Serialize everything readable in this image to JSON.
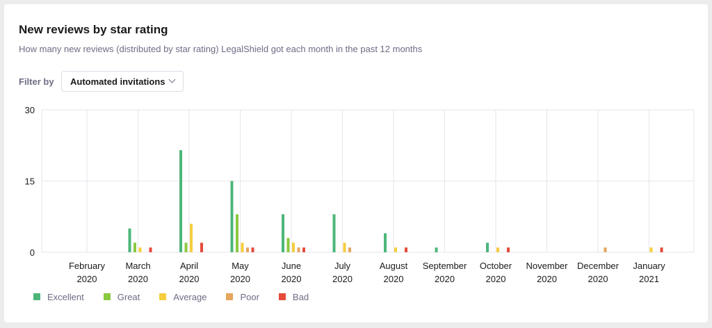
{
  "header": {
    "title": "New reviews by star rating",
    "subtitle": "How many new reviews (distributed by star rating) LegalShield got each month in the past 12 months"
  },
  "filter": {
    "label": "Filter by",
    "selected": "Automated invitations",
    "icon": "chevron-down-icon"
  },
  "chart_data": {
    "type": "bar",
    "categories": [
      [
        "February",
        "2020"
      ],
      [
        "March",
        "2020"
      ],
      [
        "April",
        "2020"
      ],
      [
        "May",
        "2020"
      ],
      [
        "June",
        "2020"
      ],
      [
        "July",
        "2020"
      ],
      [
        "August",
        "2020"
      ],
      [
        "September",
        "2020"
      ],
      [
        "October",
        "2020"
      ],
      [
        "November",
        "2020"
      ],
      [
        "December",
        "2020"
      ],
      [
        "January",
        "2021"
      ]
    ],
    "ylim": [
      0,
      30
    ],
    "yticks": [
      0,
      15,
      30
    ],
    "grid": true,
    "legend_position": "bottom-left",
    "series": [
      {
        "name": "Excellent",
        "color": "#4cb67a",
        "values": [
          0,
          5,
          21.5,
          15,
          8,
          8,
          4,
          1,
          2,
          0,
          0,
          0
        ]
      },
      {
        "name": "Great",
        "color": "#8ac83f",
        "values": [
          0,
          2,
          2,
          8,
          3,
          0,
          0,
          0,
          0,
          0,
          0,
          0
        ]
      },
      {
        "name": "Average",
        "color": "#f6cd3e",
        "values": [
          0,
          1,
          6,
          2,
          2,
          2,
          1,
          0,
          1,
          0,
          0,
          1
        ]
      },
      {
        "name": "Poor",
        "color": "#e6a65d",
        "values": [
          0,
          0,
          0,
          1,
          1,
          1,
          0,
          0,
          0,
          0,
          1,
          0
        ]
      },
      {
        "name": "Bad",
        "color": "#e54b3b",
        "values": [
          0,
          1,
          2,
          1,
          1,
          0,
          1,
          0,
          1,
          0,
          0,
          1
        ]
      }
    ]
  }
}
